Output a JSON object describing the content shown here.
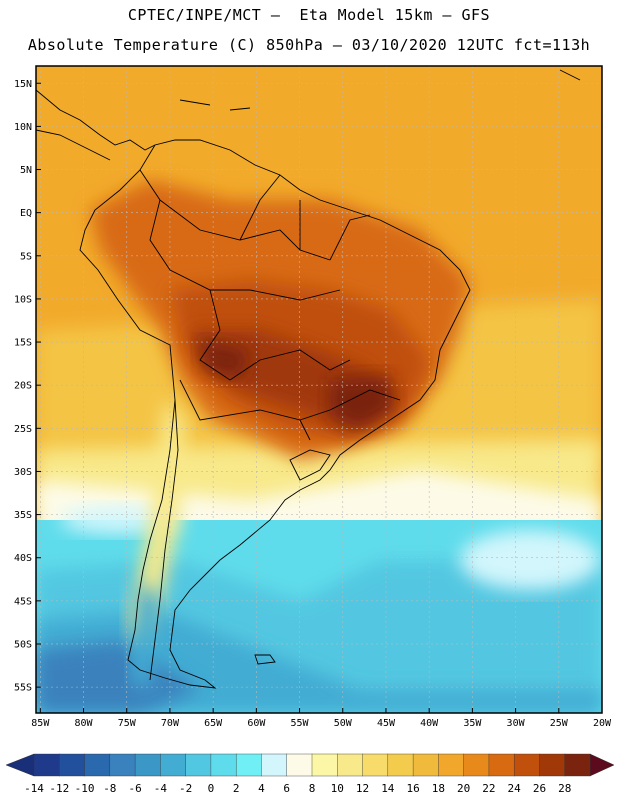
{
  "header": {
    "line1": "CPTEC/INPE/MCT –  Eta Model 15km – GFS",
    "line2": "Absolute Temperature (C) 850hPa – 03/10/2020 12UTC fct=113h"
  },
  "map": {
    "lat_labels": [
      "15N",
      "10N",
      "5N",
      "EQ",
      "5S",
      "10S",
      "15S",
      "20S",
      "25S",
      "30S",
      "35S",
      "40S",
      "45S",
      "50S",
      "55S"
    ],
    "lat_values": [
      15,
      10,
      5,
      0,
      -5,
      -10,
      -15,
      -20,
      -25,
      -30,
      -35,
      -40,
      -45,
      -50,
      -55
    ],
    "lon_labels": [
      "85W",
      "80W",
      "75W",
      "70W",
      "65W",
      "60W",
      "55W",
      "50W",
      "45W",
      "40W",
      "35W",
      "30W",
      "25W",
      "20W"
    ],
    "lon_values": [
      -85,
      -80,
      -75,
      -70,
      -65,
      -60,
      -55,
      -50,
      -45,
      -40,
      -35,
      -30,
      -25,
      -20
    ],
    "extent": {
      "lon_min": -85.5,
      "lon_max": -20,
      "lat_min": -58,
      "lat_max": 17
    }
  },
  "colorbar": {
    "labels": [
      "-14",
      "-12",
      "-10",
      "-8",
      "-6",
      "-4",
      "-2",
      "0",
      "2",
      "4",
      "6",
      "8",
      "10",
      "12",
      "14",
      "16",
      "18",
      "20",
      "22",
      "24",
      "26",
      "28"
    ],
    "colors": [
      "#1f3a8a",
      "#22509c",
      "#2a69ad",
      "#3a82bd",
      "#3b97c6",
      "#43acd3",
      "#52c7e1",
      "#5fdceb",
      "#70f0f5",
      "#d2f6fc",
      "#fdfbe8",
      "#fbf7a6",
      "#f8e98a",
      "#f7dc6c",
      "#f3cc4e",
      "#f0bb3d",
      "#f0a72c",
      "#e88a1b",
      "#d86a12",
      "#c0500c",
      "#a03808",
      "#7a2410"
    ],
    "low_color": "#1a2f7a",
    "high_color": "#5c0a1e"
  },
  "legend_colors": {
    "ocean_north": "#f2aa2b",
    "ocean_mid": "#f7dc6c",
    "ocean_south": "#52c7e1",
    "land_hot": "#c0500c",
    "land_hottest": "#7a2410"
  }
}
